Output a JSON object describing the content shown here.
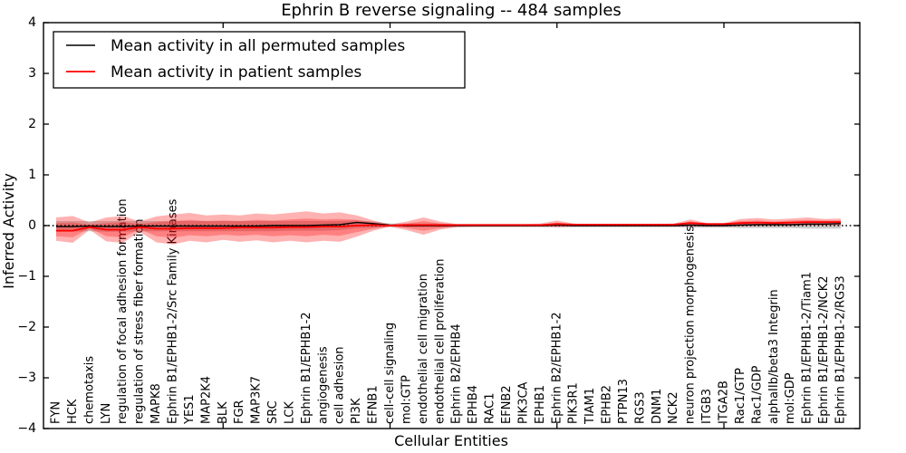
{
  "title": "Ephrin B reverse signaling -- 484 samples",
  "legend": {
    "items": [
      {
        "label": "Mean activity in all permuted samples",
        "color": "#000000"
      },
      {
        "label": "Mean activity in patient samples",
        "color": "#ff0000"
      }
    ]
  },
  "chart_data": {
    "type": "line",
    "title": "Ephrin B reverse signaling -- 484 samples",
    "xlabel": "Cellular Entities",
    "ylabel": "Inferred Activity",
    "ylim": [
      -4,
      4
    ],
    "yticks": [
      -4,
      -3,
      -2,
      -1,
      0,
      1,
      2,
      3,
      4
    ],
    "ytick_labels": [
      "−4",
      "−3",
      "−2",
      "−1",
      "0",
      "1",
      "2",
      "3",
      "4"
    ],
    "grid": false,
    "zero_line_style": "dotted",
    "legend_position": "upper-left",
    "categories": [
      "FYN",
      "HCK",
      "chemotaxis",
      "LYN",
      "regulation of focal adhesion formation",
      "regulation of stress fiber formation",
      "MAPK8",
      "Ephrin B1/EPHB1-2/Src Family Kinases",
      "YES1",
      "MAP2K4",
      "BLK",
      "FGR",
      "MAP3K7",
      "SRC",
      "LCK",
      "Ephrin B1/EPHB1-2",
      "angiogenesis",
      "cell adhesion",
      "PI3K",
      "EFNB1",
      "cell-cell signaling",
      "mol:GTP",
      "endothelial cell migration",
      "endothelial cell proliferation",
      "Ephrin B2/EPHB4",
      "EPHB4",
      "RAC1",
      "EFNB2",
      "PIK3CA",
      "EPHB1",
      "Ephrin B2/EPHB1-2",
      "PIK3R1",
      "TIAM1",
      "EPHB2",
      "PTPN13",
      "RGS3",
      "DNM1",
      "NCK2",
      "neuron projection morphogenesis",
      "ITGB3",
      "ITGA2B",
      "Rac1/GTP",
      "Rac1/GDP",
      "alphaIIb/beta3 Integrin",
      "mol:GDP",
      "Ephrin B1/EPHB1-2/Tiam1",
      "Ephrin B1/EPHB1-2/NCK2",
      "Ephrin B1/EPHB1-2/RGS3"
    ],
    "series": [
      {
        "name": "Mean activity in all permuted samples",
        "color": "#000000",
        "width": 1.4,
        "values": [
          -0.02,
          -0.02,
          -0.01,
          -0.02,
          -0.02,
          -0.01,
          -0.01,
          -0.01,
          -0.01,
          -0.01,
          -0.01,
          -0.01,
          -0.01,
          0.0,
          0.0,
          0.0,
          0.01,
          0.02,
          0.06,
          0.04,
          0.01,
          0.0,
          0.0,
          0.0,
          0.0,
          0.0,
          0.0,
          0.0,
          0.0,
          0.0,
          0.01,
          0.0,
          0.0,
          0.0,
          0.0,
          0.0,
          0.0,
          0.0,
          0.01,
          0.0,
          0.0,
          0.01,
          0.02,
          0.02,
          0.02,
          0.03,
          0.03,
          0.04
        ]
      },
      {
        "name": "Mean activity in patient samples",
        "color": "#ff0000",
        "width": 1.8,
        "values": [
          -0.1,
          -0.1,
          -0.03,
          -0.08,
          -0.08,
          -0.03,
          -0.06,
          -0.06,
          -0.05,
          -0.05,
          -0.05,
          -0.04,
          -0.04,
          -0.04,
          -0.03,
          -0.03,
          -0.02,
          -0.02,
          0.0,
          0.01,
          0.0,
          0.01,
          0.01,
          0.01,
          0.01,
          0.01,
          0.01,
          0.01,
          0.01,
          0.01,
          0.03,
          0.02,
          0.02,
          0.02,
          0.02,
          0.02,
          0.02,
          0.02,
          0.05,
          0.03,
          0.03,
          0.05,
          0.06,
          0.05,
          0.06,
          0.07,
          0.07,
          0.07
        ]
      }
    ],
    "bands": [
      {
        "name": "permuted-band",
        "color": "rgba(130,130,130,0.40)",
        "top": [
          0.09,
          0.09,
          0.09,
          0.09,
          0.09,
          0.09,
          0.09,
          0.09,
          0.09,
          0.09,
          0.09,
          0.09,
          0.09,
          0.09,
          0.09,
          0.09,
          0.09,
          0.09,
          0.1,
          0.08,
          0.04,
          0.04,
          0.04,
          0.04,
          0.03,
          0.03,
          0.03,
          0.03,
          0.03,
          0.03,
          0.03,
          0.03,
          0.03,
          0.03,
          0.03,
          0.03,
          0.03,
          0.03,
          0.04,
          0.03,
          0.03,
          0.04,
          0.04,
          0.04,
          0.04,
          0.05,
          0.05,
          0.05
        ],
        "bottom": [
          -0.12,
          -0.12,
          -0.11,
          -0.12,
          -0.12,
          -0.11,
          -0.11,
          -0.11,
          -0.11,
          -0.11,
          -0.11,
          -0.11,
          -0.11,
          -0.11,
          -0.1,
          -0.1,
          -0.1,
          -0.09,
          -0.05,
          -0.04,
          -0.03,
          -0.03,
          -0.03,
          -0.03,
          -0.03,
          -0.03,
          -0.03,
          -0.03,
          -0.03,
          -0.03,
          -0.03,
          -0.03,
          -0.03,
          -0.03,
          -0.03,
          -0.03,
          -0.03,
          -0.03,
          -0.04,
          -0.04,
          -0.04,
          -0.05,
          -0.05,
          -0.05,
          -0.05,
          -0.06,
          -0.06,
          -0.06
        ]
      },
      {
        "name": "patient-band-outer",
        "color": "rgba(255,0,0,0.30)",
        "top": [
          0.16,
          0.19,
          0.06,
          0.16,
          0.19,
          0.08,
          0.18,
          0.22,
          0.25,
          0.2,
          0.22,
          0.2,
          0.24,
          0.22,
          0.25,
          0.28,
          0.24,
          0.26,
          0.2,
          0.1,
          0.02,
          0.08,
          0.16,
          0.08,
          0.03,
          0.03,
          0.03,
          0.03,
          0.03,
          0.04,
          0.1,
          0.04,
          0.03,
          0.03,
          0.03,
          0.03,
          0.03,
          0.04,
          0.12,
          0.05,
          0.05,
          0.13,
          0.15,
          0.12,
          0.14,
          0.16,
          0.13,
          0.14
        ],
        "bottom": [
          -0.3,
          -0.34,
          -0.08,
          -0.31,
          -0.34,
          -0.12,
          -0.33,
          -0.37,
          -0.3,
          -0.33,
          -0.28,
          -0.32,
          -0.29,
          -0.33,
          -0.3,
          -0.33,
          -0.3,
          -0.32,
          -0.22,
          -0.1,
          -0.02,
          -0.09,
          -0.18,
          -0.08,
          -0.03,
          -0.02,
          -0.02,
          -0.02,
          -0.02,
          -0.02,
          -0.03,
          -0.02,
          -0.02,
          -0.02,
          -0.02,
          -0.02,
          -0.02,
          -0.02,
          -0.02,
          -0.02,
          -0.02,
          -0.01,
          -0.01,
          -0.01,
          -0.01,
          0.0,
          0.0,
          0.0
        ]
      },
      {
        "name": "patient-band-inner",
        "color": "rgba(255,0,0,0.28)",
        "top": [
          0.05,
          0.06,
          0.02,
          0.05,
          0.07,
          0.03,
          0.07,
          0.09,
          0.11,
          0.09,
          0.1,
          0.09,
          0.11,
          0.1,
          0.12,
          0.14,
          0.12,
          0.13,
          0.11,
          0.06,
          0.01,
          0.04,
          0.09,
          0.04,
          0.02,
          0.02,
          0.02,
          0.02,
          0.02,
          0.02,
          0.06,
          0.02,
          0.02,
          0.02,
          0.02,
          0.02,
          0.02,
          0.02,
          0.08,
          0.04,
          0.04,
          0.09,
          0.1,
          0.08,
          0.1,
          0.11,
          0.1,
          0.1
        ],
        "bottom": [
          -0.21,
          -0.23,
          -0.05,
          -0.21,
          -0.23,
          -0.07,
          -0.21,
          -0.24,
          -0.19,
          -0.21,
          -0.18,
          -0.2,
          -0.18,
          -0.21,
          -0.19,
          -0.21,
          -0.18,
          -0.2,
          -0.13,
          -0.06,
          -0.01,
          -0.05,
          -0.1,
          -0.05,
          -0.01,
          -0.01,
          -0.01,
          -0.01,
          -0.01,
          -0.01,
          -0.01,
          -0.01,
          -0.01,
          -0.01,
          -0.01,
          -0.01,
          -0.01,
          -0.01,
          0.0,
          0.0,
          0.0,
          0.01,
          0.02,
          0.01,
          0.02,
          0.03,
          0.03,
          0.03
        ]
      }
    ]
  }
}
